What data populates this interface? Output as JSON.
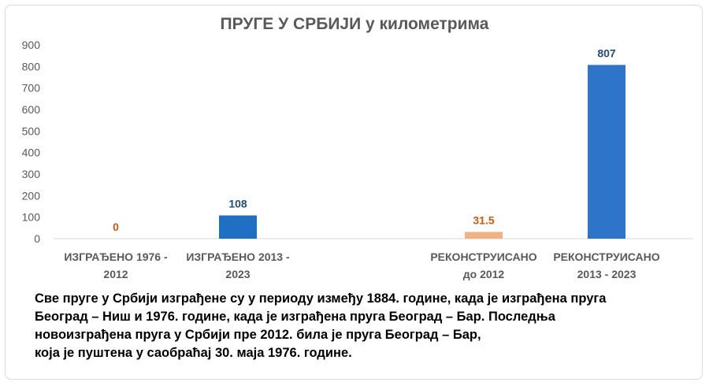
{
  "chart_data": {
    "type": "bar",
    "title": "ПРУГЕ У СРБИЈИ у километрима",
    "categories": [
      [
        "ИЗГРАЂЕНО 1976 -",
        "2012"
      ],
      [
        "ИЗГРАЂЕНО 2013 -",
        "2023"
      ],
      [
        "РЕКОНСТРУИСАНО",
        "до 2012"
      ],
      [
        "РЕКОНСТРУИСАНО",
        "2013 - 2023"
      ]
    ],
    "values": [
      0,
      108,
      31.5,
      807
    ],
    "value_labels": [
      "0",
      "108",
      "31.5",
      "807"
    ],
    "bar_colors": [
      "#ed7d31",
      "#1f6fc2",
      "#f4b183",
      "#2e74c9"
    ],
    "label_colors": [
      "#c55a11",
      "#1f4e79",
      "#c55a11",
      "#1f4e79"
    ],
    "ylim": [
      0,
      900
    ],
    "yticks": [
      0,
      100,
      200,
      300,
      400,
      500,
      600,
      700,
      800,
      900
    ],
    "grid": false,
    "xlabel": "",
    "ylabel": ""
  },
  "caption": {
    "lines": [
      "Све пруге у Србији изграђене су у периоду између 1884. године, када је изграђена пруга",
      "Београд – Ниш и 1976. године, када је изграђена пруга Београд – Бар. Последња",
      "новоизграђена пруга у Србији пре 2012.  била је пруга Београд – Бар,",
      "која је пуштена у саобраћај 30. маја 1976. године."
    ]
  }
}
